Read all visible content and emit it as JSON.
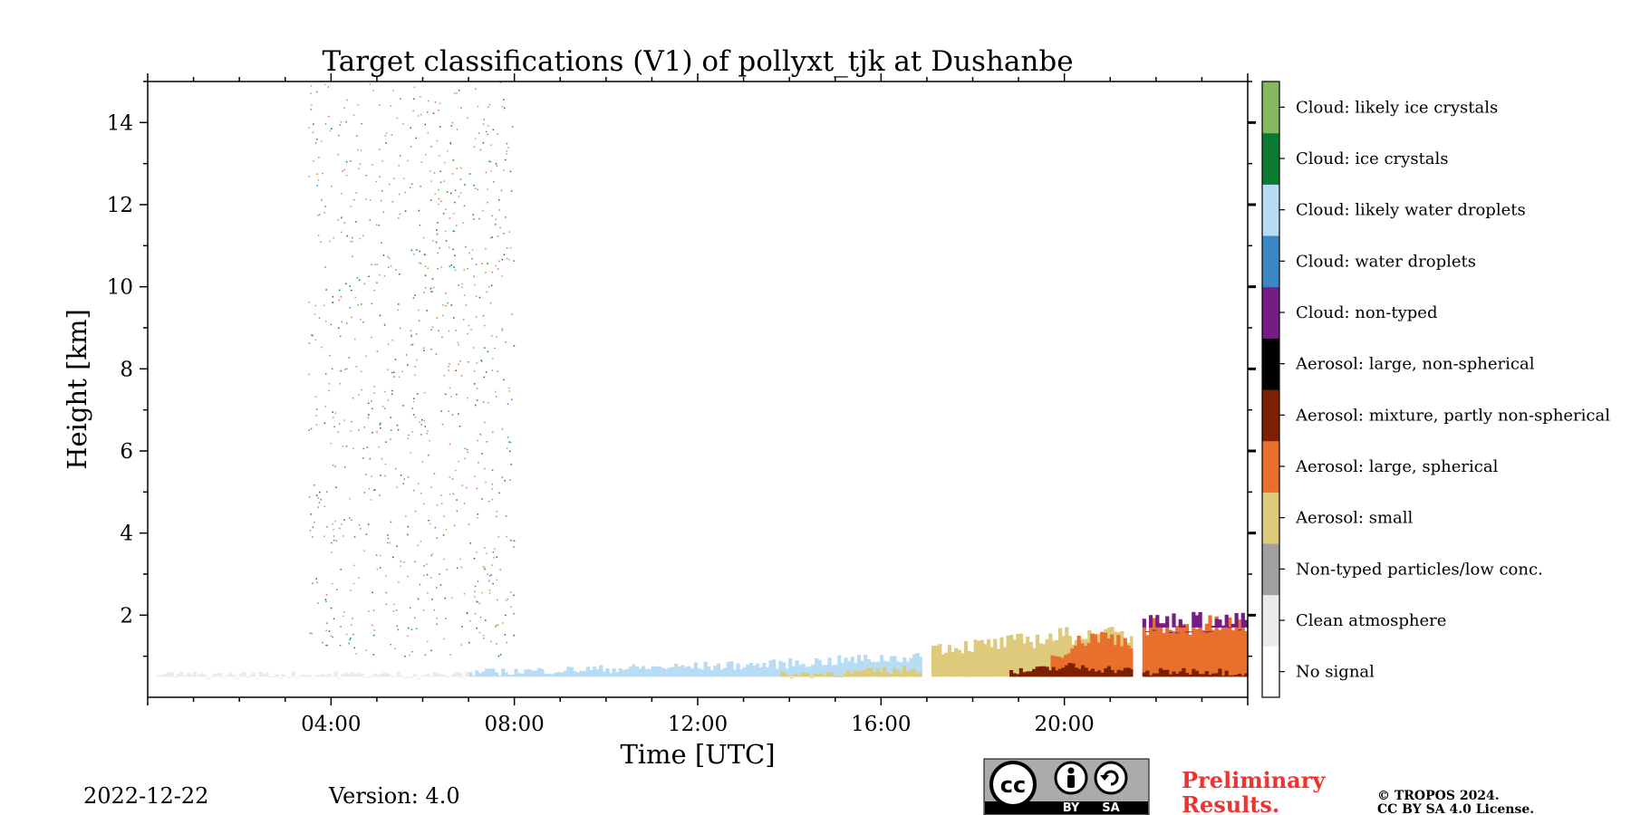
{
  "chart_data": {
    "type": "heatmap",
    "title": "Target classifications (V1) of pollyxt_tjk at Dushanbe",
    "xlabel": "Time [UTC]",
    "ylabel": "Height [km]",
    "xlim_hours": [
      0,
      24
    ],
    "ylim_km": [
      0,
      15
    ],
    "x_ticks": [
      "04:00",
      "08:00",
      "12:00",
      "16:00",
      "20:00"
    ],
    "x_tick_hours": [
      4,
      8,
      12,
      16,
      20
    ],
    "y_ticks": [
      "2",
      "4",
      "6",
      "8",
      "10",
      "12",
      "14"
    ],
    "y_tick_values": [
      2,
      4,
      6,
      8,
      10,
      12,
      14
    ],
    "grid": false,
    "legend_position": "right colorbar",
    "classes": [
      {
        "label": "No signal",
        "color": "#ffffff"
      },
      {
        "label": "Clean atmosphere",
        "color": "#ebebeb"
      },
      {
        "label": "Non-typed particles/low conc.",
        "color": "#a0a0a0"
      },
      {
        "label": "Aerosol: small",
        "color": "#ddcb7b"
      },
      {
        "label": "Aerosol: large, spherical",
        "color": "#e8702c"
      },
      {
        "label": "Aerosol: mixture, partly non-spherical",
        "color": "#7d2001"
      },
      {
        "label": "Aerosol: large, non-spherical",
        "color": "#000000"
      },
      {
        "label": "Cloud: non-typed",
        "color": "#761d85"
      },
      {
        "label": "Cloud: water droplets",
        "color": "#3d86c4"
      },
      {
        "label": "Cloud: likely water droplets",
        "color": "#b9dcf5"
      },
      {
        "label": "Cloud: ice crystals",
        "color": "#0c7a32"
      },
      {
        "label": "Cloud: likely ice crystals",
        "color": "#87b760"
      }
    ],
    "regions": [
      {
        "class": "Cloud: likely water droplets",
        "t_start": 7.0,
        "t_end": 16.9,
        "h_bottom": 0.5,
        "h_top": [
          0.6,
          0.7,
          0.8,
          1.0
        ]
      },
      {
        "class": "Aerosol: small",
        "t_start": 13.8,
        "t_end": 16.9,
        "h_bottom": 0.5,
        "h_top": [
          0.55,
          0.6,
          0.7
        ]
      },
      {
        "class": "Aerosol: small",
        "t_start": 17.1,
        "t_end": 21.5,
        "h_bottom": 0.5,
        "h_top": [
          1.2,
          1.3,
          1.5,
          1.5
        ]
      },
      {
        "class": "Aerosol: large, spherical",
        "t_start": 19.7,
        "t_end": 21.5,
        "h_bottom": 0.5,
        "h_top": [
          1.0,
          1.5,
          1.4
        ]
      },
      {
        "class": "Aerosol: mixture, partly non-spherical",
        "t_start": 18.8,
        "t_end": 21.5,
        "h_bottom": 0.5,
        "h_top": [
          0.6,
          0.75,
          0.65
        ]
      },
      {
        "class": "Aerosol: large, spherical",
        "t_start": 21.7,
        "t_end": 24.0,
        "h_bottom": 0.5,
        "h_top": [
          1.7,
          1.75,
          1.75
        ]
      },
      {
        "class": "Aerosol: mixture, partly non-spherical",
        "t_start": 21.7,
        "t_end": 24.0,
        "h_bottom": 0.5,
        "h_top": [
          0.6,
          0.65,
          0.6
        ]
      },
      {
        "class": "Cloud: non-typed",
        "t_start": 21.7,
        "t_end": 24.0,
        "h_bottom": 1.7,
        "h_top": [
          1.8,
          1.85,
          1.8
        ]
      },
      {
        "class": "Clean atmosphere",
        "t_start": 0.2,
        "t_end": 7.0,
        "h_bottom": 0.5,
        "h_top": [
          0.55,
          0.55,
          0.55
        ]
      }
    ],
    "data_gaps_hours": [
      [
        16.9,
        17.1
      ],
      [
        21.5,
        21.7
      ]
    ],
    "scatter_noise": {
      "t_start": 3.5,
      "t_end": 8.0,
      "h_bottom": 1.0,
      "h_top": 15.0,
      "classes": [
        "Cloud: ice crystals",
        "Cloud: likely ice crystals",
        "Cloud: water droplets",
        "Aerosol: large, spherical",
        "Non-typed particles/low conc."
      ]
    }
  },
  "footer": {
    "date": "2022-12-22",
    "version": "Version: 4.0",
    "preliminary_line1": "Preliminary",
    "preliminary_line2": "Results.",
    "copyright_line1": "© TROPOS 2024.",
    "copyright_line2": "CC BY SA 4.0 License.",
    "license_badge": {
      "cc": "cc",
      "by": "BY",
      "sa": "SA"
    }
  }
}
